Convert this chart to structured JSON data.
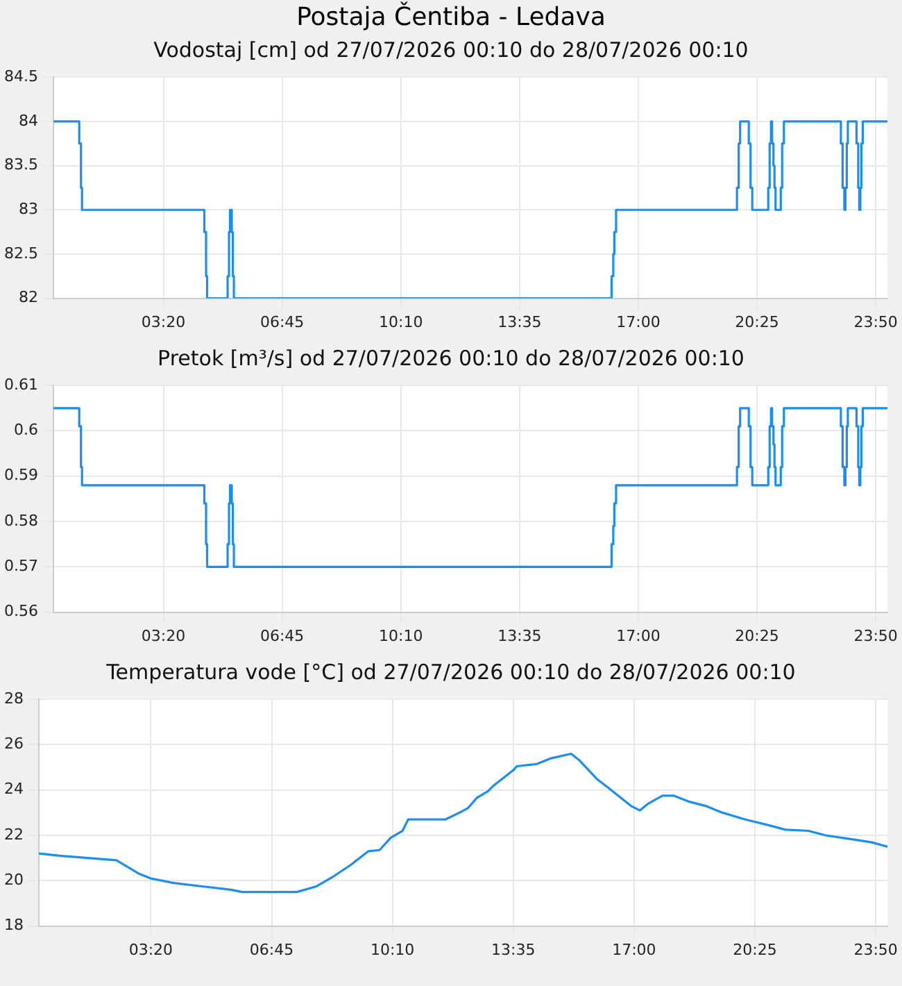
{
  "chart_data": [
    {
      "type": "step",
      "title": "Postaja Čentiba - Ledava",
      "subtitle": "Vodostaj [cm] od 27/07/2026 00:10 do 28/07/2026 00:10",
      "color": "#1a8fef",
      "marker": "none",
      "grid": true,
      "x": [
        0.17,
        0.91,
        0.96,
        0.99,
        4.51,
        4.56,
        4.59,
        5.18,
        5.22,
        5.25,
        5.3,
        5.33,
        5.36,
        16.23,
        16.28,
        16.31,
        16.36,
        19.84,
        19.89,
        19.93,
        20.18,
        20.23,
        20.28,
        20.74,
        20.78,
        20.82,
        20.85,
        20.89,
        20.92,
        20.95,
        21.1,
        21.14,
        21.19,
        22.83,
        22.88,
        22.93,
        22.96,
        23.0,
        23.03,
        23.28,
        23.33,
        23.36,
        23.39,
        23.42,
        23.46,
        24.17
      ],
      "values": [
        84,
        83.75,
        83.25,
        83,
        82.75,
        82.25,
        82,
        82.25,
        82.75,
        83,
        82.75,
        82.25,
        82,
        82.25,
        82.5,
        82.75,
        83,
        83.25,
        83.75,
        84,
        83.75,
        83.25,
        83,
        83.25,
        83.75,
        84,
        83.75,
        83.5,
        83.25,
        83,
        83.25,
        83.75,
        84,
        83.75,
        83.25,
        83,
        83.25,
        83.75,
        84,
        83.75,
        83.25,
        83,
        83.25,
        83.75,
        84,
        84
      ],
      "xlim": [
        0.1667,
        24.17
      ],
      "xticks": [
        {
          "value": 3.3333,
          "label": "03:20"
        },
        {
          "value": 6.75,
          "label": "06:45"
        },
        {
          "value": 10.1667,
          "label": "10:10"
        },
        {
          "value": 13.5833,
          "label": "13:35"
        },
        {
          "value": 17,
          "label": "17:00"
        },
        {
          "value": 20.4167,
          "label": "20:25"
        },
        {
          "value": 23.8333,
          "label": "23:50"
        }
      ],
      "ylim": [
        82,
        84.5
      ],
      "yticks": [
        82,
        82.5,
        83,
        83.5,
        84,
        84.5
      ]
    },
    {
      "type": "step",
      "title": "Pretok [m³/s] od 27/07/2026 00:10 do 28/07/2026 00:10",
      "color": "#1a8fef",
      "marker": "none",
      "grid": true,
      "x": [
        0.17,
        0.91,
        0.96,
        0.99,
        4.51,
        4.56,
        4.59,
        5.18,
        5.22,
        5.25,
        5.3,
        5.33,
        5.36,
        16.23,
        16.28,
        16.31,
        16.36,
        19.84,
        19.89,
        19.93,
        20.18,
        20.23,
        20.28,
        20.74,
        20.78,
        20.82,
        20.85,
        20.89,
        20.92,
        20.95,
        21.1,
        21.14,
        21.19,
        22.83,
        22.88,
        22.93,
        22.96,
        23.0,
        23.03,
        23.28,
        23.33,
        23.36,
        23.39,
        23.42,
        23.46,
        24.17
      ],
      "values": [
        0.605,
        0.601,
        0.592,
        0.588,
        0.584,
        0.575,
        0.57,
        0.575,
        0.584,
        0.588,
        0.584,
        0.575,
        0.57,
        0.575,
        0.579,
        0.584,
        0.588,
        0.592,
        0.601,
        0.605,
        0.601,
        0.592,
        0.588,
        0.592,
        0.601,
        0.605,
        0.601,
        0.597,
        0.592,
        0.588,
        0.592,
        0.601,
        0.605,
        0.601,
        0.592,
        0.588,
        0.592,
        0.601,
        0.605,
        0.601,
        0.592,
        0.588,
        0.592,
        0.601,
        0.605,
        0.605
      ],
      "xlim": [
        0.1667,
        24.17
      ],
      "xticks": [
        {
          "value": 3.3333,
          "label": "03:20"
        },
        {
          "value": 6.75,
          "label": "06:45"
        },
        {
          "value": 10.1667,
          "label": "10:10"
        },
        {
          "value": 13.5833,
          "label": "13:35"
        },
        {
          "value": 17,
          "label": "17:00"
        },
        {
          "value": 20.4167,
          "label": "20:25"
        },
        {
          "value": 23.8333,
          "label": "23:50"
        }
      ],
      "ylim": [
        0.56,
        0.61
      ],
      "yticks": [
        0.56,
        0.57,
        0.58,
        0.59,
        0.6,
        0.61
      ]
    },
    {
      "type": "line",
      "title": "Temperatura vode [°C] od 27/07/2026 00:10 do 28/07/2026 00:10",
      "color": "#1a8fef",
      "marker": "none",
      "grid": true,
      "x": [
        0.17,
        0.75,
        1.55,
        2.36,
        3.01,
        3.33,
        3.98,
        4.79,
        5.6,
        5.92,
        7.46,
        8.02,
        8.51,
        8.99,
        9.48,
        9.8,
        10.12,
        10.45,
        10.61,
        11.66,
        12.06,
        12.3,
        12.55,
        12.87,
        13.03,
        13.6,
        13.68,
        14.25,
        14.65,
        15.22,
        15.46,
        15.94,
        16.27,
        16.59,
        16.91,
        17.16,
        17.4,
        17.8,
        18.13,
        18.53,
        19.02,
        19.5,
        20.15,
        20.8,
        21.28,
        21.93,
        22.41,
        23.06,
        23.7,
        24.17
      ],
      "values": [
        21.2,
        21.1,
        21.0,
        20.9,
        20.3,
        20.1,
        19.9,
        19.75,
        19.6,
        19.5,
        19.5,
        19.75,
        20.2,
        20.7,
        21.3,
        21.35,
        21.9,
        22.2,
        22.7,
        22.7,
        23.0,
        23.2,
        23.65,
        23.95,
        24.2,
        24.9,
        25.05,
        25.15,
        25.4,
        25.6,
        25.3,
        24.5,
        24.1,
        23.7,
        23.3,
        23.1,
        23.4,
        23.75,
        23.75,
        23.5,
        23.3,
        23.0,
        22.7,
        22.45,
        22.25,
        22.2,
        22.0,
        21.85,
        21.7,
        21.5
      ],
      "xlim": [
        0.1667,
        24.17
      ],
      "xticks": [
        {
          "value": 3.3333,
          "label": "03:20"
        },
        {
          "value": 6.75,
          "label": "06:45"
        },
        {
          "value": 10.1667,
          "label": "10:10"
        },
        {
          "value": 13.5833,
          "label": "13:35"
        },
        {
          "value": 17,
          "label": "17:00"
        },
        {
          "value": 20.4167,
          "label": "20:25"
        },
        {
          "value": 23.8333,
          "label": "23:50"
        }
      ],
      "ylim": [
        18,
        28
      ],
      "yticks": [
        18,
        20,
        22,
        24,
        26,
        28
      ]
    }
  ]
}
